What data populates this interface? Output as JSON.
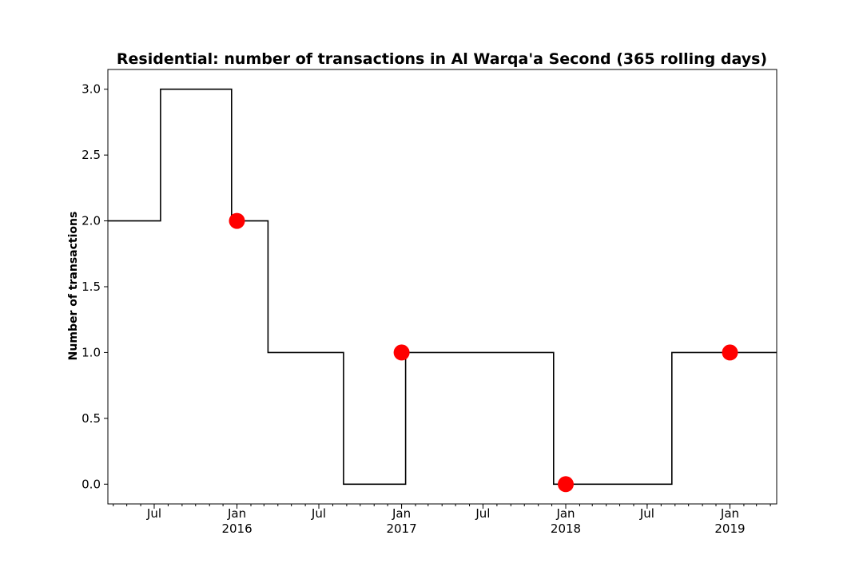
{
  "chart_data": {
    "type": "line",
    "title": "Residential: number of transactions in Al Warqa'a Second (365 rolling days)",
    "xlabel": "",
    "ylabel": "Number of transactions",
    "xlim": [
      "2015-03-20",
      "2019-04-15"
    ],
    "ylim": [
      -0.15,
      3.15
    ],
    "grid": false,
    "y_ticks": [
      {
        "value": 0.0,
        "label": "0.0"
      },
      {
        "value": 0.5,
        "label": "0.5"
      },
      {
        "value": 1.0,
        "label": "1.0"
      },
      {
        "value": 1.5,
        "label": "1.5"
      },
      {
        "value": 2.0,
        "label": "2.0"
      },
      {
        "value": 2.5,
        "label": "2.5"
      },
      {
        "value": 3.0,
        "label": "3.0"
      }
    ],
    "x_ticks": [
      {
        "date": "2015-07-01",
        "label": "Jul",
        "sublabel": ""
      },
      {
        "date": "2016-01-01",
        "label": "Jan",
        "sublabel": "2016"
      },
      {
        "date": "2016-07-01",
        "label": "Jul",
        "sublabel": ""
      },
      {
        "date": "2017-01-01",
        "label": "Jan",
        "sublabel": "2017"
      },
      {
        "date": "2017-07-01",
        "label": "Jul",
        "sublabel": ""
      },
      {
        "date": "2018-01-01",
        "label": "Jan",
        "sublabel": "2018"
      },
      {
        "date": "2018-07-01",
        "label": "Jul",
        "sublabel": ""
      },
      {
        "date": "2019-01-01",
        "label": "Jan",
        "sublabel": "2019"
      }
    ],
    "series": [
      {
        "line_style": "step",
        "color": "#000000",
        "points": [
          {
            "x": "2015-03-20",
            "y": 2
          },
          {
            "x": "2015-07-15",
            "y": 3
          },
          {
            "x": "2015-12-20",
            "y": 2
          },
          {
            "x": "2016-03-10",
            "y": 1
          },
          {
            "x": "2016-08-25",
            "y": 0
          },
          {
            "x": "2017-01-10",
            "y": 1
          },
          {
            "x": "2017-12-05",
            "y": 0
          },
          {
            "x": "2018-08-25",
            "y": 1
          },
          {
            "x": "2019-04-15",
            "y": 1
          }
        ]
      }
    ],
    "markers": {
      "color": "#ff0000",
      "points": [
        {
          "x": "2016-01-01",
          "y": 2
        },
        {
          "x": "2017-01-01",
          "y": 1
        },
        {
          "x": "2018-01-01",
          "y": 0
        },
        {
          "x": "2019-01-01",
          "y": 1
        }
      ]
    }
  }
}
